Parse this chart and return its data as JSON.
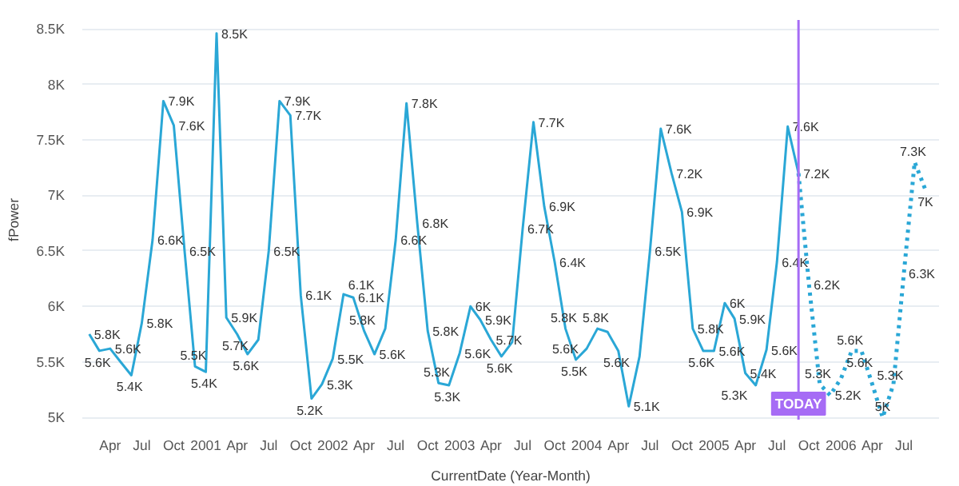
{
  "chart_data": {
    "type": "line",
    "xlabel": "CurrentDate (Year-Month)",
    "ylabel": "fPower",
    "grid": "y",
    "marker": "none",
    "xlim": [
      "2000-01-12",
      "2006-10-10"
    ],
    "xticks": [
      {
        "value": "2000-04",
        "label": "Apr"
      },
      {
        "value": "2000-07",
        "label": "Jul"
      },
      {
        "value": "2000-10",
        "label": "Oct"
      },
      {
        "value": "2001-01",
        "label": "2001"
      },
      {
        "value": "2001-04",
        "label": "Apr"
      },
      {
        "value": "2001-07",
        "label": "Jul"
      },
      {
        "value": "2001-10",
        "label": "Oct"
      },
      {
        "value": "2002-01",
        "label": "2002"
      },
      {
        "value": "2002-04",
        "label": "Apr"
      },
      {
        "value": "2002-07",
        "label": "Jul"
      },
      {
        "value": "2002-10",
        "label": "Oct"
      },
      {
        "value": "2003-01",
        "label": "2003"
      },
      {
        "value": "2003-04",
        "label": "Apr"
      },
      {
        "value": "2003-07",
        "label": "Jul"
      },
      {
        "value": "2003-10",
        "label": "Oct"
      },
      {
        "value": "2004-01",
        "label": "2004"
      },
      {
        "value": "2004-04",
        "label": "Apr"
      },
      {
        "value": "2004-07",
        "label": "Jul"
      },
      {
        "value": "2004-10",
        "label": "Oct"
      },
      {
        "value": "2005-01",
        "label": "2005"
      },
      {
        "value": "2005-04",
        "label": "Apr"
      },
      {
        "value": "2005-07",
        "label": "Jul"
      },
      {
        "value": "2005-10",
        "label": "Oct"
      },
      {
        "value": "2006-01",
        "label": "2006"
      },
      {
        "value": "2006-04",
        "label": "Apr"
      },
      {
        "value": "2006-07",
        "label": "Jul"
      }
    ],
    "ylim": [
      4980,
      8580
    ],
    "yticks": [
      {
        "value": 5000,
        "label": "5K"
      },
      {
        "value": 5500,
        "label": "5.5K"
      },
      {
        "value": 6000,
        "label": "6K"
      },
      {
        "value": 6500,
        "label": "6.5K"
      },
      {
        "value": 7000,
        "label": "7K"
      },
      {
        "value": 7500,
        "label": "7.5K"
      },
      {
        "value": 8000,
        "label": "8K"
      },
      {
        "value": 8500,
        "label": "8.5K"
      }
    ],
    "ref_lines": [
      {
        "axis": "x",
        "value": "2005-09",
        "label": "TODAY",
        "color": "#a66cf5"
      }
    ],
    "series": [
      {
        "color": "#2aa7d6",
        "line_style": "solid",
        "x": [
          "2000-02",
          "2000-03",
          "2000-04",
          "2000-05",
          "2000-06",
          "2000-07",
          "2000-08",
          "2000-09",
          "2000-10",
          "2000-11",
          "2000-12",
          "2001-01",
          "2001-02",
          "2001-03",
          "2001-04",
          "2001-05",
          "2001-06",
          "2001-07",
          "2001-08",
          "2001-09",
          "2001-10",
          "2001-11",
          "2001-12",
          "2002-01",
          "2002-02",
          "2002-03",
          "2002-04",
          "2002-05",
          "2002-06",
          "2002-07",
          "2002-08",
          "2002-09",
          "2002-10",
          "2002-11",
          "2002-12",
          "2003-01",
          "2003-02",
          "2003-03",
          "2003-04",
          "2003-05",
          "2003-06",
          "2003-07",
          "2003-08",
          "2003-09",
          "2003-10",
          "2003-11",
          "2003-12",
          "2004-01",
          "2004-02",
          "2004-03",
          "2004-04",
          "2004-05",
          "2004-06",
          "2004-07",
          "2004-08",
          "2004-09",
          "2004-10",
          "2004-11",
          "2004-12",
          "2005-01",
          "2005-02",
          "2005-03",
          "2005-04",
          "2005-05",
          "2005-06",
          "2005-07",
          "2005-08",
          "2005-09"
        ],
        "values": [
          5750,
          5600,
          5620,
          5500,
          5380,
          5850,
          6600,
          7850,
          7630,
          6500,
          5460,
          5410,
          8460,
          5900,
          5750,
          5570,
          5700,
          6500,
          7850,
          7720,
          6100,
          5170,
          5300,
          5530,
          6110,
          6080,
          5780,
          5570,
          5800,
          6600,
          7830,
          6750,
          5780,
          5310,
          5290,
          5580,
          6000,
          5880,
          5700,
          5550,
          5680,
          6700,
          7660,
          6900,
          6400,
          5800,
          5520,
          5620,
          5800,
          5770,
          5600,
          5100,
          5550,
          6500,
          7600,
          7200,
          6850,
          5800,
          5600,
          5600,
          6030,
          5890,
          5400,
          5290,
          5610,
          6400,
          7620,
          7200
        ],
        "value_labels": [
          "5.8K",
          "5.6K",
          "5.6K",
          null,
          "5.4K",
          "5.8K",
          "6.6K",
          "7.9K",
          "7.6K",
          "6.5K",
          "5.5K",
          "5.4K",
          "8.5K",
          "5.9K",
          "5.7K",
          "5.6K",
          null,
          "6.5K",
          "7.9K",
          "7.7K",
          "6.1K",
          "5.2K",
          "5.3K",
          "5.5K",
          "6.1K",
          "6.1K",
          "5.8K",
          "5.6K",
          null,
          "6.6K",
          "7.8K",
          "6.8K",
          "5.8K",
          "5.3K",
          "5.3K",
          "5.6K",
          "6K",
          "5.9K",
          "5.7K",
          "5.6K",
          null,
          "6.7K",
          "7.7K",
          "6.9K",
          "6.4K",
          "5.8K",
          "5.5K",
          "5.6K",
          "5.8K",
          null,
          "5.6K",
          "5.1K",
          null,
          "6.5K",
          "7.6K",
          "7.2K",
          "6.9K",
          "5.8K",
          "5.6K",
          "5.6K",
          "6K",
          "5.9K",
          "5.4K",
          "5.3K",
          "5.6K",
          "6.4K",
          "7.6K",
          null
        ]
      },
      {
        "color": "#2aa7d6",
        "line_style": "dotted",
        "x": [
          "2005-09",
          "2005-10",
          "2005-11",
          "2005-12",
          "2006-01",
          "2006-02",
          "2006-03",
          "2006-04",
          "2006-05",
          "2006-06",
          "2006-07",
          "2006-08",
          "2006-09"
        ],
        "values": [
          7200,
          6200,
          5300,
          5200,
          5350,
          5600,
          5600,
          5300,
          5000,
          5300,
          6300,
          7300,
          7050
        ],
        "value_labels": [
          "7.2K",
          "6.2K",
          "5.3K",
          "5.2K",
          null,
          "5.6K",
          "5.6K",
          "5.3K",
          "5K",
          null,
          "6.3K",
          "7.3K",
          "7K"
        ]
      }
    ]
  }
}
